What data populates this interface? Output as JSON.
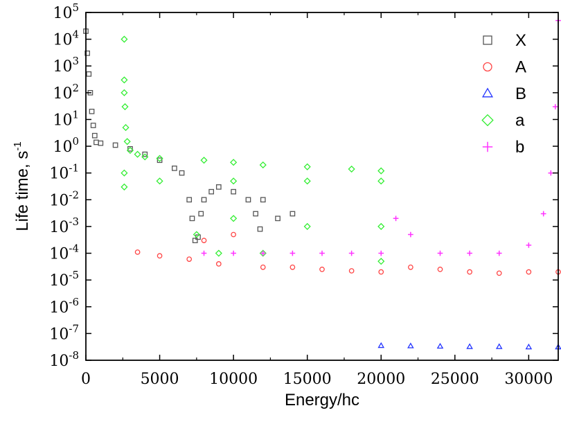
{
  "chart_data": {
    "type": "scatter",
    "xlabel": "Energy/hc",
    "ylabel": "Life time, s",
    "ylabel_sup": "-1",
    "xlim": [
      0,
      32000
    ],
    "ylim_exp": [
      -8,
      5
    ],
    "yscale": "log",
    "x_ticks": [
      0,
      5000,
      10000,
      15000,
      20000,
      25000,
      30000
    ],
    "x_tick_labels": [
      "0",
      "5000",
      "10000",
      "15000",
      "20000",
      "25000",
      "30000"
    ],
    "y_tick_exponents": [
      -8,
      -7,
      -6,
      -5,
      -4,
      -3,
      -2,
      -1,
      0,
      1,
      2,
      3,
      4,
      5
    ],
    "y_tick_base": "10",
    "legend_position": "top-right",
    "grid": false,
    "series": [
      {
        "name": "X",
        "marker": "square",
        "color": "#555555",
        "points": [
          [
            0,
            20000
          ],
          [
            100,
            3000
          ],
          [
            200,
            500
          ],
          [
            300,
            100
          ],
          [
            400,
            20
          ],
          [
            500,
            6
          ],
          [
            600,
            2.5
          ],
          [
            700,
            1.4
          ],
          [
            1000,
            1.3
          ],
          [
            2000,
            1.1
          ],
          [
            3000,
            0.8
          ],
          [
            4000,
            0.5
          ],
          [
            5000,
            0.3
          ],
          [
            6000,
            0.15
          ],
          [
            6500,
            0.1
          ],
          [
            7000,
            0.01
          ],
          [
            7200,
            0.002
          ],
          [
            7400,
            0.0003
          ],
          [
            7600,
            0.0004
          ],
          [
            7800,
            0.003
          ],
          [
            8000,
            0.01
          ],
          [
            8500,
            0.02
          ],
          [
            9000,
            0.03
          ],
          [
            10000,
            0.02
          ],
          [
            11000,
            0.01
          ],
          [
            11500,
            0.003
          ],
          [
            11800,
            0.0008
          ],
          [
            12000,
            0.01
          ],
          [
            13000,
            0.002
          ],
          [
            14000,
            0.003
          ]
        ]
      },
      {
        "name": "A",
        "marker": "circle",
        "color": "#ff4444",
        "points": [
          [
            3500,
            0.00011
          ],
          [
            5000,
            8e-05
          ],
          [
            7000,
            6e-05
          ],
          [
            8000,
            0.0003
          ],
          [
            9000,
            4e-05
          ],
          [
            10000,
            0.0005
          ],
          [
            12000,
            3e-05
          ],
          [
            14000,
            3e-05
          ],
          [
            16000,
            2.5e-05
          ],
          [
            18000,
            2.2e-05
          ],
          [
            20000,
            2e-05
          ],
          [
            22000,
            3e-05
          ],
          [
            24000,
            2.5e-05
          ],
          [
            26000,
            2e-05
          ],
          [
            28000,
            1.8e-05
          ],
          [
            30000,
            2e-05
          ],
          [
            32000,
            2e-05
          ]
        ]
      },
      {
        "name": "B",
        "marker": "triangle",
        "color": "#2233ff",
        "points": [
          [
            20000,
            3.5e-08
          ],
          [
            22000,
            3.4e-08
          ],
          [
            24000,
            3.3e-08
          ],
          [
            26000,
            3.2e-08
          ],
          [
            28000,
            3.2e-08
          ],
          [
            30000,
            3.1e-08
          ],
          [
            32000,
            3.1e-08
          ]
        ]
      },
      {
        "name": "a",
        "marker": "diamond",
        "color": "#33ee33",
        "points": [
          [
            2600,
            10000
          ],
          [
            2600,
            300
          ],
          [
            2600,
            100
          ],
          [
            2650,
            30
          ],
          [
            2700,
            5
          ],
          [
            2800,
            1.5
          ],
          [
            3000,
            0.7
          ],
          [
            3500,
            0.5
          ],
          [
            4000,
            0.4
          ],
          [
            5000,
            0.35
          ],
          [
            8000,
            0.3
          ],
          [
            10000,
            0.25
          ],
          [
            12000,
            0.2
          ],
          [
            15000,
            0.17
          ],
          [
            18000,
            0.14
          ],
          [
            20000,
            0.12
          ],
          [
            2600,
            0.1
          ],
          [
            2600,
            0.03
          ],
          [
            5000,
            0.05
          ],
          [
            10000,
            0.05
          ],
          [
            15000,
            0.05
          ],
          [
            20000,
            0.05
          ],
          [
            10000,
            0.002
          ],
          [
            15000,
            0.001
          ],
          [
            20000,
            0.001
          ],
          [
            7500,
            0.0005
          ],
          [
            9000,
            0.0001
          ],
          [
            12000,
            0.0001
          ],
          [
            20000,
            5e-05
          ]
        ]
      },
      {
        "name": "b",
        "marker": "plus",
        "color": "#ff33ff",
        "points": [
          [
            8000,
            0.0001
          ],
          [
            10000,
            0.0001
          ],
          [
            12000,
            0.0001
          ],
          [
            14000,
            0.0001
          ],
          [
            16000,
            0.0001
          ],
          [
            18000,
            0.0001
          ],
          [
            20000,
            0.0001
          ],
          [
            21000,
            0.002
          ],
          [
            22000,
            0.0005
          ],
          [
            24000,
            0.0001
          ],
          [
            26000,
            0.0001
          ],
          [
            28000,
            0.0001
          ],
          [
            30000,
            0.0002
          ],
          [
            31000,
            0.003
          ],
          [
            31500,
            0.1
          ],
          [
            31800,
            30
          ],
          [
            32000,
            50000
          ]
        ]
      }
    ]
  }
}
